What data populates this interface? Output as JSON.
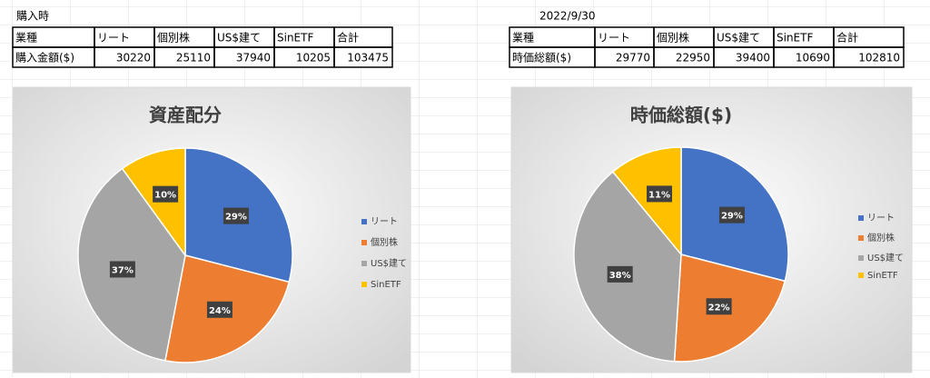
{
  "tables": [
    {
      "title": "購入時",
      "header": [
        "業種",
        "リート",
        "個別株",
        "US$建て",
        "SinETF",
        "合計"
      ],
      "row": [
        "購入金額($)",
        30220,
        25110,
        37940,
        10205,
        103475
      ]
    },
    {
      "title": "2022/9/30",
      "header": [
        "業種",
        "リート",
        "個別株",
        "US$建て",
        "SinETF",
        "合計"
      ],
      "row": [
        "時価総額($)",
        29770,
        22950,
        39400,
        10690,
        102810
      ]
    }
  ],
  "chart_data": [
    {
      "type": "pie",
      "title": "資産配分",
      "categories": [
        "リート",
        "個別株",
        "US$建て",
        "SinETF"
      ],
      "values": [
        29,
        24,
        37,
        10
      ],
      "value_labels": [
        "29%",
        "24%",
        "37%",
        "10%"
      ],
      "colors": [
        "#4472c4",
        "#ed7d31",
        "#a5a5a5",
        "#ffc000"
      ]
    },
    {
      "type": "pie",
      "title": "時価総額($)",
      "categories": [
        "リート",
        "個別株",
        "US$建て",
        "SinETF"
      ],
      "values": [
        29,
        22,
        38,
        11
      ],
      "value_labels": [
        "29%",
        "22%",
        "38%",
        "11%"
      ],
      "colors": [
        "#4472c4",
        "#ed7d31",
        "#a5a5a5",
        "#ffc000"
      ]
    }
  ]
}
